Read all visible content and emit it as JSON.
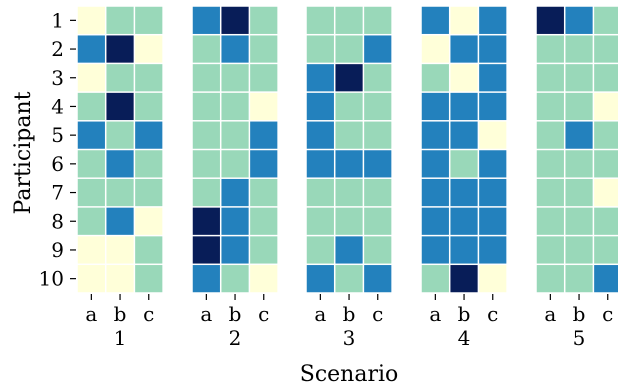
{
  "chart_data": {
    "type": "heatmap",
    "title": "",
    "xlabel": "Scenario",
    "ylabel": "Participant",
    "participants": [
      "1",
      "2",
      "3",
      "4",
      "5",
      "6",
      "7",
      "8",
      "9",
      "10"
    ],
    "subcategories": [
      "a",
      "b",
      "c"
    ],
    "scenarios": [
      "1",
      "2",
      "3",
      "4",
      "5"
    ],
    "color_levels": {
      "0": "#ffffd9",
      "1": "#99d8b9",
      "2": "#2381bd",
      "3": "#081d58"
    },
    "panels": [
      {
        "scenario": "1",
        "values": [
          [
            0,
            1,
            1
          ],
          [
            2,
            3,
            0
          ],
          [
            0,
            1,
            1
          ],
          [
            1,
            3,
            1
          ],
          [
            2,
            1,
            2
          ],
          [
            1,
            2,
            1
          ],
          [
            1,
            1,
            1
          ],
          [
            1,
            2,
            0
          ],
          [
            0,
            0,
            1
          ],
          [
            0,
            0,
            1
          ]
        ]
      },
      {
        "scenario": "2",
        "values": [
          [
            2,
            3,
            1
          ],
          [
            1,
            2,
            1
          ],
          [
            1,
            1,
            1
          ],
          [
            1,
            1,
            0
          ],
          [
            1,
            1,
            2
          ],
          [
            1,
            1,
            2
          ],
          [
            1,
            2,
            1
          ],
          [
            3,
            2,
            1
          ],
          [
            3,
            2,
            1
          ],
          [
            2,
            1,
            0
          ]
        ]
      },
      {
        "scenario": "3",
        "values": [
          [
            1,
            1,
            1
          ],
          [
            1,
            1,
            2
          ],
          [
            2,
            3,
            1
          ],
          [
            2,
            1,
            1
          ],
          [
            2,
            1,
            1
          ],
          [
            2,
            2,
            2
          ],
          [
            1,
            1,
            1
          ],
          [
            1,
            1,
            1
          ],
          [
            1,
            2,
            1
          ],
          [
            2,
            1,
            2
          ]
        ]
      },
      {
        "scenario": "4",
        "values": [
          [
            2,
            0,
            2
          ],
          [
            0,
            2,
            2
          ],
          [
            1,
            0,
            2
          ],
          [
            2,
            2,
            2
          ],
          [
            2,
            2,
            0
          ],
          [
            2,
            1,
            2
          ],
          [
            2,
            2,
            2
          ],
          [
            2,
            2,
            2
          ],
          [
            2,
            2,
            2
          ],
          [
            1,
            3,
            0
          ]
        ]
      },
      {
        "scenario": "5",
        "values": [
          [
            3,
            2,
            1
          ],
          [
            1,
            1,
            1
          ],
          [
            1,
            1,
            1
          ],
          [
            1,
            1,
            0
          ],
          [
            1,
            2,
            1
          ],
          [
            1,
            1,
            1
          ],
          [
            1,
            1,
            0
          ],
          [
            1,
            1,
            1
          ],
          [
            1,
            1,
            1
          ],
          [
            1,
            1,
            2
          ]
        ]
      }
    ]
  }
}
